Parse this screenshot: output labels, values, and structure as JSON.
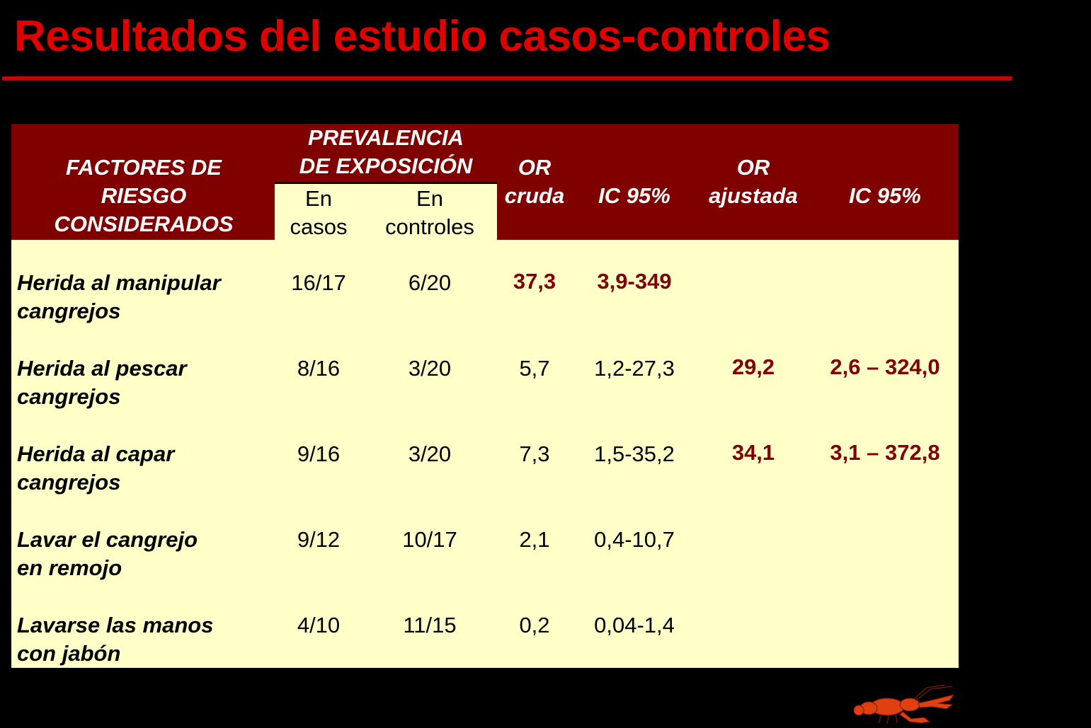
{
  "title": "Resultados del estudio casos-controles",
  "colors": {
    "title": "#e00000",
    "header_bg": "#800000",
    "table_bg": "#ffffc8",
    "highlight": "#800000"
  },
  "header": {
    "factor": [
      "FACTORES DE",
      "RIESGO",
      "CONSIDERADOS"
    ],
    "prevalence": [
      "PREVALENCIA",
      "DE EXPOSICIÓN"
    ],
    "casos": [
      "En",
      "casos"
    ],
    "controles": [
      "En",
      "controles"
    ],
    "or_cruda": [
      "OR",
      "cruda"
    ],
    "ic1": "IC 95%",
    "or_ajustada": [
      "OR",
      "ajustada"
    ],
    "ic2": "IC 95%"
  },
  "rows": [
    {
      "factor": [
        "Herida al manipular",
        "cangrejos"
      ],
      "casos": "16/17",
      "controles": "6/20",
      "or_cruda": "37,3",
      "ic1": "3,9-349",
      "or_ajustada": "",
      "ic2": ""
    },
    {
      "factor": [
        "Herida al pescar",
        "cangrejos"
      ],
      "casos": "8/16",
      "controles": "3/20",
      "or_cruda": "5,7",
      "ic1": "1,2-27,3",
      "or_ajustada": "29,2",
      "ic2": "2,6 – 324,0"
    },
    {
      "factor": [
        "Herida al capar",
        "cangrejos"
      ],
      "casos": "9/16",
      "controles": "3/20",
      "or_cruda": "7,3",
      "ic1": "1,5-35,2",
      "or_ajustada": "34,1",
      "ic2": "3,1 – 372,8"
    },
    {
      "factor": [
        "Lavar el cangrejo",
        "en remojo"
      ],
      "casos": "9/12",
      "controles": "10/17",
      "or_cruda": "2,1",
      "ic1": "0,4-10,7",
      "or_ajustada": "",
      "ic2": ""
    },
    {
      "factor": [
        "Lavarse las manos",
        "con jabón"
      ],
      "casos": "4/10",
      "controles": "11/15",
      "or_cruda": "0,2",
      "ic1": "0,04-1,4",
      "or_ajustada": "",
      "ic2": ""
    }
  ],
  "decoration": "crayfish-illustration"
}
